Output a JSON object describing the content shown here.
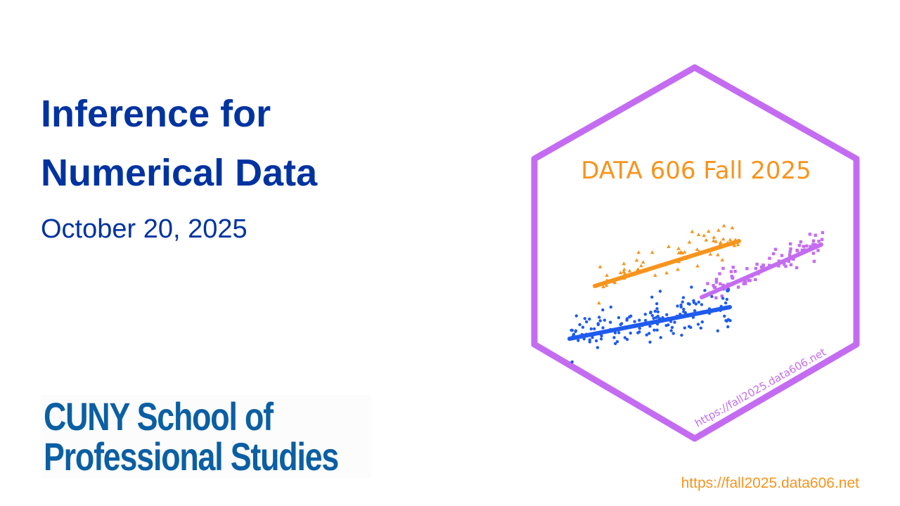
{
  "title": {
    "line1": "Inference for",
    "line2": "Numerical Data"
  },
  "date": "October 20, 2025",
  "logo": {
    "line1": "CUNY School of",
    "line2": "Professional Studies"
  },
  "footer_url": "https://fall2025.data606.net",
  "hex_sticker": {
    "title": "DATA 606 Fall 2025",
    "url": "https://fall2025.data606.net",
    "colors": {
      "border": "#c46cf1",
      "orange": "#f7941d",
      "blue": "#1f5bef",
      "purple": "#c46cf1"
    }
  }
}
